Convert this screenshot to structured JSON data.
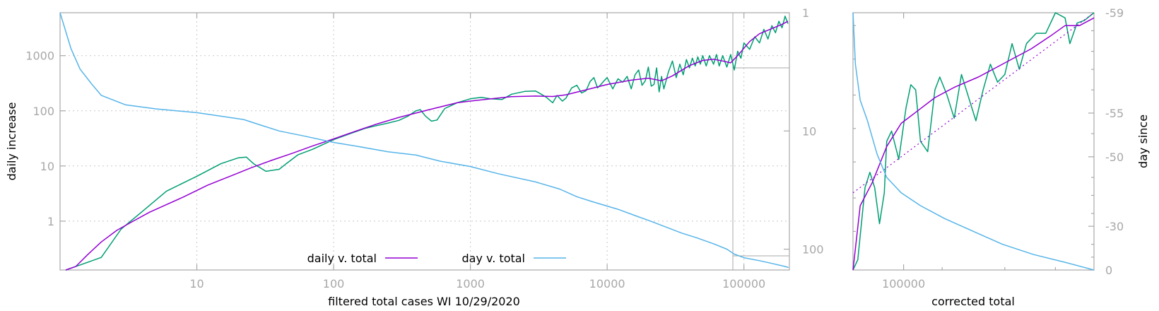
{
  "colors": {
    "daily_smooth": "#9400d3",
    "daily_raw": "#009e73",
    "day": "#56b4e9",
    "axis": "#a8a8a8",
    "grid": "#c8c8c8"
  },
  "chart_data": [
    {
      "type": "line",
      "xlabel": "filtered total cases WI 10/29/2020",
      "ylabel": "daily increase",
      "y2label": "",
      "xscale": "log",
      "yscale": "log",
      "y2scale": "log-reversed",
      "xlim": [
        1,
        215000
      ],
      "ylim": [
        0.13,
        6000
      ],
      "y2lim": [
        150,
        1
      ],
      "x_ticks": [
        "10",
        "100",
        "1000",
        "10000",
        "100000"
      ],
      "y_ticks": [
        "1",
        "10",
        "100",
        "1000"
      ],
      "y2_ticks": [
        "1",
        "10",
        "100"
      ],
      "grid": true,
      "legend_position": "bottom-center",
      "series": [
        {
          "name": "daily v. total",
          "color_key": "daily_smooth",
          "axis": "left",
          "points": [
            [
              1.1,
              0.13
            ],
            [
              1.3,
              0.15
            ],
            [
              1.6,
              0.25
            ],
            [
              2,
              0.42
            ],
            [
              2.6,
              0.68
            ],
            [
              3.3,
              0.95
            ],
            [
              4.5,
              1.45
            ],
            [
              6,
              2.0
            ],
            [
              8,
              2.75
            ],
            [
              12,
              4.5
            ],
            [
              18,
              6.7
            ],
            [
              25,
              9.3
            ],
            [
              35,
              12.6
            ],
            [
              50,
              17
            ],
            [
              70,
              23
            ],
            [
              100,
              31
            ],
            [
              150,
              44
            ],
            [
              200,
              56
            ],
            [
              300,
              76
            ],
            [
              500,
              105
            ],
            [
              800,
              140
            ],
            [
              1000,
              150
            ],
            [
              1500,
              168
            ],
            [
              2000,
              180
            ],
            [
              3000,
              185
            ],
            [
              4000,
              182
            ],
            [
              5000,
              195
            ],
            [
              7000,
              240
            ],
            [
              10000,
              300
            ],
            [
              15000,
              360
            ],
            [
              20000,
              390
            ],
            [
              25000,
              350
            ],
            [
              30000,
              430
            ],
            [
              40000,
              660
            ],
            [
              50000,
              820
            ],
            [
              60000,
              860
            ],
            [
              70000,
              800
            ],
            [
              80000,
              740
            ],
            [
              90000,
              1000
            ],
            [
              110000,
              1800
            ],
            [
              130000,
              2500
            ],
            [
              160000,
              3100
            ],
            [
              190000,
              3700
            ],
            [
              210000,
              4200
            ]
          ]
        },
        {
          "name": "",
          "color_key": "daily_raw",
          "axis": "left",
          "points": [
            [
              1.1,
              0.13
            ],
            [
              1.3,
              0.15
            ],
            [
              2,
              0.22
            ],
            [
              2.8,
              0.72
            ],
            [
              4,
              1.5
            ],
            [
              6,
              3.5
            ],
            [
              10,
              6.5
            ],
            [
              15,
              11
            ],
            [
              20,
              14
            ],
            [
              23,
              14.5
            ],
            [
              26,
              11
            ],
            [
              32,
              8
            ],
            [
              40,
              8.7
            ],
            [
              45,
              11
            ],
            [
              55,
              16
            ],
            [
              70,
              20
            ],
            [
              100,
              30
            ],
            [
              130,
              38
            ],
            [
              170,
              48
            ],
            [
              200,
              53
            ],
            [
              250,
              60
            ],
            [
              300,
              67
            ],
            [
              350,
              80
            ],
            [
              400,
              100
            ],
            [
              430,
              105
            ],
            [
              470,
              80
            ],
            [
              520,
              65
            ],
            [
              570,
              68
            ],
            [
              650,
              110
            ],
            [
              800,
              140
            ],
            [
              1000,
              165
            ],
            [
              1200,
              175
            ],
            [
              1400,
              165
            ],
            [
              1700,
              160
            ],
            [
              2000,
              200
            ],
            [
              2500,
              225
            ],
            [
              3000,
              228
            ],
            [
              3300,
              200
            ],
            [
              3600,
              175
            ],
            [
              4000,
              140
            ],
            [
              4300,
              190
            ],
            [
              4700,
              150
            ],
            [
              5000,
              170
            ],
            [
              5500,
              260
            ],
            [
              6000,
              290
            ],
            [
              6500,
              210
            ],
            [
              7000,
              230
            ],
            [
              7500,
              340
            ],
            [
              8000,
              400
            ],
            [
              8500,
              260
            ],
            [
              9000,
              300
            ],
            [
              9500,
              350
            ],
            [
              10000,
              400
            ],
            [
              11000,
              250
            ],
            [
              12000,
              380
            ],
            [
              13000,
              330
            ],
            [
              14000,
              420
            ],
            [
              15000,
              250
            ],
            [
              16000,
              450
            ],
            [
              17000,
              550
            ],
            [
              18000,
              290
            ],
            [
              19000,
              350
            ],
            [
              20000,
              620
            ],
            [
              21000,
              280
            ],
            [
              22000,
              300
            ],
            [
              23000,
              600
            ],
            [
              24000,
              220
            ],
            [
              25000,
              420
            ],
            [
              26000,
              250
            ],
            [
              28000,
              500
            ],
            [
              30000,
              800
            ],
            [
              32000,
              400
            ],
            [
              34000,
              700
            ],
            [
              36000,
              450
            ],
            [
              38000,
              850
            ],
            [
              40000,
              600
            ],
            [
              42000,
              900
            ],
            [
              44000,
              650
            ],
            [
              46000,
              950
            ],
            [
              48000,
              700
            ],
            [
              50000,
              1000
            ],
            [
              53000,
              650
            ],
            [
              56000,
              1000
            ],
            [
              60000,
              700
            ],
            [
              63000,
              1050
            ],
            [
              66000,
              650
            ],
            [
              70000,
              1000
            ],
            [
              75000,
              620
            ],
            [
              80000,
              1050
            ],
            [
              85000,
              550
            ],
            [
              90000,
              1200
            ],
            [
              95000,
              900
            ],
            [
              100000,
              1700
            ],
            [
              110000,
              1300
            ],
            [
              120000,
              2200
            ],
            [
              130000,
              1700
            ],
            [
              140000,
              3000
            ],
            [
              150000,
              2000
            ],
            [
              160000,
              3500
            ],
            [
              170000,
              2600
            ],
            [
              180000,
              4200
            ],
            [
              190000,
              3200
            ],
            [
              200000,
              5200
            ],
            [
              210000,
              3800
            ]
          ]
        },
        {
          "name": "day v. total",
          "color_key": "day",
          "axis": "right",
          "points": [
            [
              1,
              1
            ],
            [
              1.2,
              2
            ],
            [
              1.4,
              3
            ],
            [
              1.7,
              4
            ],
            [
              2,
              5
            ],
            [
              3,
              6
            ],
            [
              5,
              6.5
            ],
            [
              10,
              7
            ],
            [
              15,
              7.5
            ],
            [
              22,
              8
            ],
            [
              30,
              9
            ],
            [
              40,
              10
            ],
            [
              60,
              11
            ],
            [
              100,
              12.5
            ],
            [
              150,
              13.5
            ],
            [
              250,
              15
            ],
            [
              400,
              16
            ],
            [
              600,
              18
            ],
            [
              1000,
              20
            ],
            [
              1600,
              23
            ],
            [
              3000,
              27
            ],
            [
              4500,
              31
            ],
            [
              6000,
              36
            ],
            [
              8000,
              40
            ],
            [
              12000,
              46
            ],
            [
              16000,
              52
            ],
            [
              20000,
              57
            ],
            [
              27000,
              65
            ],
            [
              35000,
              73
            ],
            [
              45000,
              80
            ],
            [
              60000,
              90
            ],
            [
              75000,
              100
            ],
            [
              85000,
              110
            ],
            [
              100000,
              118
            ],
            [
              130000,
              125
            ],
            [
              160000,
              132
            ],
            [
              200000,
              140
            ],
            [
              212000,
              143
            ]
          ]
        }
      ]
    },
    {
      "type": "line",
      "xlabel": "corrected total",
      "ylabel": "",
      "y2label": "day since",
      "xscale": "log",
      "x_ticks": [
        "100000"
      ],
      "y2_ticks": [
        "-59",
        "-55",
        "-50",
        "-30",
        "0"
      ],
      "grid": false,
      "series": [
        {
          "name": "",
          "color_key": "daily_raw",
          "axis": "left",
          "points": [
            [
              0,
              0.0
            ],
            [
              0.02,
              0.04
            ],
            [
              0.05,
              0.32
            ],
            [
              0.07,
              0.38
            ],
            [
              0.09,
              0.32
            ],
            [
              0.11,
              0.18
            ],
            [
              0.13,
              0.3
            ],
            [
              0.14,
              0.5
            ],
            [
              0.16,
              0.54
            ],
            [
              0.19,
              0.43
            ],
            [
              0.22,
              0.63
            ],
            [
              0.24,
              0.72
            ],
            [
              0.26,
              0.7
            ],
            [
              0.28,
              0.5
            ],
            [
              0.31,
              0.46
            ],
            [
              0.34,
              0.7
            ],
            [
              0.36,
              0.75
            ],
            [
              0.39,
              0.68
            ],
            [
              0.42,
              0.59
            ],
            [
              0.45,
              0.76
            ],
            [
              0.48,
              0.67
            ],
            [
              0.51,
              0.58
            ],
            [
              0.54,
              0.7
            ],
            [
              0.57,
              0.8
            ],
            [
              0.6,
              0.73
            ],
            [
              0.63,
              0.76
            ],
            [
              0.66,
              0.88
            ],
            [
              0.69,
              0.78
            ],
            [
              0.72,
              0.88
            ],
            [
              0.76,
              0.92
            ],
            [
              0.8,
              0.92
            ],
            [
              0.84,
              1.0
            ],
            [
              0.88,
              0.98
            ],
            [
              0.9,
              0.88
            ],
            [
              0.93,
              0.96
            ],
            [
              0.96,
              0.97
            ],
            [
              1.0,
              1.0
            ]
          ]
        },
        {
          "name": "",
          "color_key": "daily_smooth",
          "axis": "left",
          "points": [
            [
              0,
              0.0
            ],
            [
              0.03,
              0.25
            ],
            [
              0.08,
              0.34
            ],
            [
              0.14,
              0.48
            ],
            [
              0.2,
              0.57
            ],
            [
              0.27,
              0.62
            ],
            [
              0.34,
              0.67
            ],
            [
              0.42,
              0.71
            ],
            [
              0.52,
              0.75
            ],
            [
              0.58,
              0.78
            ],
            [
              0.66,
              0.82
            ],
            [
              0.74,
              0.86
            ],
            [
              0.82,
              0.91
            ],
            [
              0.88,
              0.95
            ],
            [
              0.94,
              0.95
            ],
            [
              1.0,
              0.98
            ]
          ]
        },
        {
          "name": "",
          "color_key": "daily_smooth",
          "axis": "left",
          "dashed": true,
          "points": [
            [
              0,
              0.3
            ],
            [
              1.0,
              1.02
            ]
          ]
        },
        {
          "name": "",
          "color_key": "day",
          "axis": "right",
          "points": [
            [
              0,
              1.0
            ],
            [
              0.01,
              0.8
            ],
            [
              0.03,
              0.66
            ],
            [
              0.06,
              0.58
            ],
            [
              0.1,
              0.45
            ],
            [
              0.14,
              0.36
            ],
            [
              0.2,
              0.3
            ],
            [
              0.28,
              0.25
            ],
            [
              0.38,
              0.2
            ],
            [
              0.5,
              0.15
            ],
            [
              0.62,
              0.1
            ],
            [
              0.75,
              0.06
            ],
            [
              0.88,
              0.03
            ],
            [
              1.0,
              0.0
            ]
          ]
        }
      ]
    }
  ]
}
